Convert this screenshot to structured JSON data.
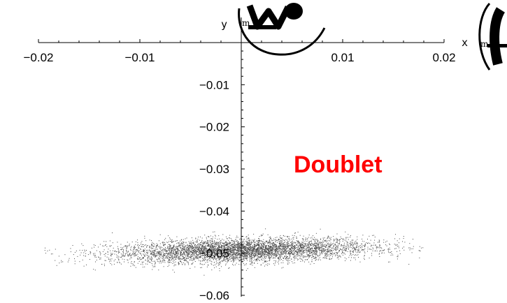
{
  "chart_data": {
    "type": "scatter",
    "title": "",
    "x_axis": {
      "label": "x",
      "unit_mark": "m",
      "range": [
        -0.02,
        0.02
      ],
      "ticks": [
        {
          "value": -0.02,
          "label": "-0.02"
        },
        {
          "value": -0.01,
          "label": "-0.01"
        },
        {
          "value": 0.01,
          "label": "0.01"
        },
        {
          "value": 0.02,
          "label": "0.02"
        }
      ]
    },
    "y_axis": {
      "label": "y",
      "unit_mark": "m",
      "range": [
        -0.06,
        0
      ],
      "ticks": [
        {
          "value": -0.01,
          "label": "-0.01"
        },
        {
          "value": -0.02,
          "label": "-0.02"
        },
        {
          "value": -0.03,
          "label": "-0.03"
        },
        {
          "value": -0.04,
          "label": "-0.04"
        },
        {
          "value": -0.05,
          "label": "-0.05"
        },
        {
          "value": -0.06,
          "label": "-0.06"
        }
      ]
    },
    "grid": false,
    "annotation": {
      "text": "Doublet",
      "color": "#ff0000"
    },
    "point_cloud": {
      "description": "dense elliptical cloud of points",
      "x_center": 0.0,
      "x_extent": [
        -0.0175,
        0.016
      ],
      "y_center": -0.0493,
      "y_extent": [
        -0.0525,
        -0.0455
      ]
    }
  },
  "colors": {
    "axis": "#000000",
    "points": "#4a4a4a",
    "annotation": "#ff0000"
  },
  "icons": [
    "logo-w-icon",
    "logo-l-icon"
  ]
}
